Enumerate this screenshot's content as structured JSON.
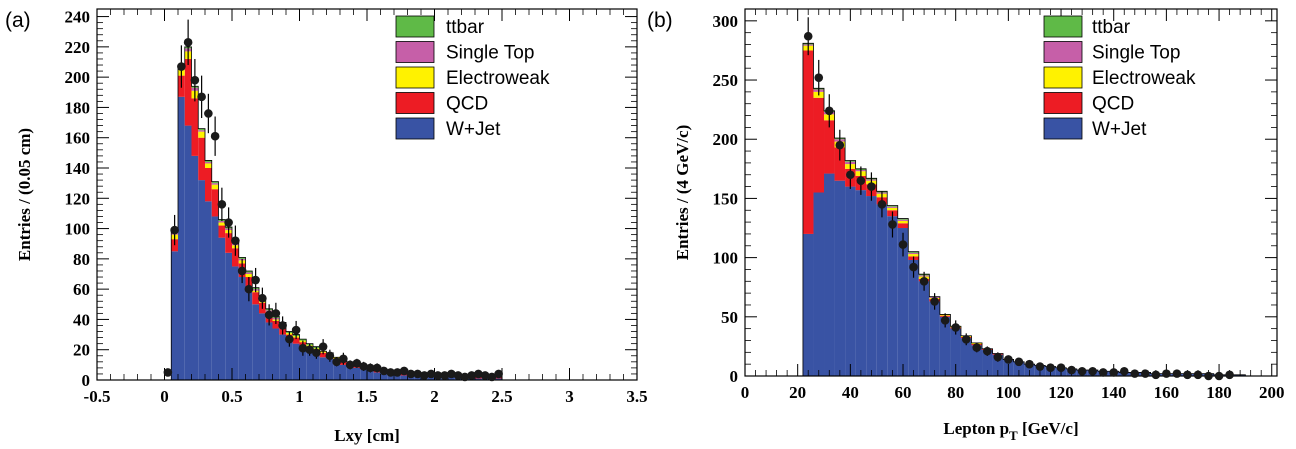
{
  "chart_data": [
    {
      "type": "stacked-histogram",
      "panel_label": "(a)",
      "xlabel": "Lxy [cm]",
      "ylabel": "Entries / (0.05 cm)",
      "xlim": [
        -0.5,
        3.5
      ],
      "ylim": [
        0,
        245
      ],
      "x_ticks": [
        -0.5,
        0,
        0.5,
        1,
        1.5,
        2,
        2.5,
        3,
        3.5
      ],
      "x_tick_labels": [
        "-0.5",
        "0",
        "0.5",
        "1",
        "1.5",
        "2",
        "2.5",
        "3",
        "3.5"
      ],
      "y_ticks": [
        0,
        20,
        40,
        60,
        80,
        100,
        120,
        140,
        160,
        180,
        200,
        220,
        240
      ],
      "y_tick_labels": [
        "0",
        "20",
        "40",
        "60",
        "80",
        "100",
        "120",
        "140",
        "160",
        "180",
        "200",
        "220",
        "240"
      ],
      "legend_position": "top-right",
      "bin_width": 0.05,
      "bin_edges_start": 0.05,
      "series": [
        {
          "name": "W+Jet",
          "color": "#3953a4",
          "values": [
            85,
            187,
            168,
            148,
            132,
            118,
            108,
            94,
            84,
            75,
            68,
            58,
            50,
            44,
            38,
            34,
            30,
            26,
            24,
            21,
            19,
            17,
            15,
            14,
            12,
            10,
            9,
            8,
            7,
            6,
            5,
            5,
            4,
            4,
            3,
            3,
            3,
            3,
            2,
            2,
            2,
            2,
            2,
            1,
            1,
            1,
            1,
            1,
            1
          ]
        },
        {
          "name": "QCD",
          "color": "#ed1c24",
          "values": [
            8,
            14,
            44,
            38,
            28,
            22,
            18,
            8,
            13,
            12,
            9,
            10,
            8,
            7,
            6,
            5,
            5,
            4,
            4,
            4,
            3,
            3,
            3,
            3,
            2,
            2,
            2,
            2,
            1,
            1,
            1,
            1,
            1,
            1,
            1,
            1,
            1,
            1,
            1,
            1,
            1,
            1,
            1,
            1,
            1,
            1,
            1,
            1,
            1
          ]
        },
        {
          "name": "Electroweak",
          "color": "#fff200",
          "values": [
            3,
            4,
            5,
            5,
            4,
            3,
            3,
            2,
            2,
            2,
            2,
            2,
            1,
            1,
            1,
            1,
            1,
            1,
            1,
            1,
            1,
            1,
            1,
            1,
            1,
            1,
            1,
            1,
            0,
            0,
            0,
            0,
            0,
            0,
            0,
            0,
            0,
            0,
            0,
            0,
            0,
            0,
            0,
            0,
            0,
            0,
            0,
            0,
            0
          ]
        },
        {
          "name": "Single Top",
          "color": "#c65fa8",
          "values": [
            1,
            2,
            2,
            2,
            1,
            1,
            1,
            1,
            1,
            1,
            1,
            1,
            1,
            1,
            1,
            1,
            1,
            0,
            0,
            0,
            0,
            0,
            0,
            0,
            0,
            0,
            0,
            0,
            0,
            0,
            0,
            0,
            0,
            0,
            0,
            0,
            0,
            0,
            0,
            0,
            0,
            0,
            0,
            0,
            0,
            0,
            0,
            0,
            0
          ]
        },
        {
          "name": "ttbar",
          "color": "#5fba47",
          "values": [
            1,
            1,
            1,
            1,
            1,
            1,
            1,
            1,
            1,
            1,
            1,
            1,
            1,
            1,
            1,
            1,
            1,
            1,
            1,
            1,
            1,
            1,
            0,
            0,
            0,
            0,
            0,
            0,
            0,
            0,
            0,
            0,
            0,
            0,
            0,
            0,
            0,
            0,
            0,
            0,
            0,
            0,
            0,
            0,
            0,
            0,
            0,
            0,
            0
          ]
        }
      ],
      "data_points": {
        "x": [
          0.025,
          0.075,
          0.125,
          0.175,
          0.225,
          0.275,
          0.325,
          0.375,
          0.425,
          0.475,
          0.525,
          0.575,
          0.625,
          0.675,
          0.725,
          0.775,
          0.825,
          0.875,
          0.925,
          0.975,
          1.025,
          1.075,
          1.125,
          1.175,
          1.225,
          1.275,
          1.325,
          1.375,
          1.425,
          1.475,
          1.525,
          1.575,
          1.625,
          1.675,
          1.725,
          1.775,
          1.825,
          1.875,
          1.925,
          1.975,
          2.025,
          2.075,
          2.125,
          2.175,
          2.225,
          2.275,
          2.325,
          2.375,
          2.425,
          2.475
        ],
        "y": [
          5,
          99,
          207,
          223,
          198,
          187,
          176,
          161,
          116,
          104,
          92,
          72,
          60,
          66,
          54,
          43,
          44,
          36,
          27,
          33,
          21,
          20,
          18,
          22,
          16,
          12,
          14,
          10,
          11,
          9,
          8,
          8,
          6,
          5,
          5,
          6,
          4,
          4,
          3,
          4,
          3,
          3,
          4,
          3,
          2,
          3,
          4,
          3,
          2,
          4
        ],
        "err": [
          2,
          10,
          14,
          15,
          14,
          14,
          13,
          13,
          11,
          10,
          10,
          8,
          8,
          8,
          7,
          7,
          7,
          6,
          5,
          6,
          5,
          4,
          4,
          5,
          4,
          3,
          4,
          3,
          3,
          3,
          3,
          3,
          2,
          2,
          2,
          2,
          2,
          2,
          2,
          2,
          2,
          2,
          2,
          2,
          1,
          2,
          2,
          2,
          1,
          2
        ]
      }
    },
    {
      "type": "stacked-histogram",
      "panel_label": "(b)",
      "xlabel": "Lepton p",
      "xlabel_sub": "T",
      "xlabel_unit": " [GeV/c]",
      "ylabel": "Entries / (4 GeV/c)",
      "xlim": [
        0,
        202
      ],
      "ylim": [
        0,
        310
      ],
      "x_ticks": [
        0,
        20,
        40,
        60,
        80,
        100,
        120,
        140,
        160,
        180,
        200
      ],
      "x_tick_labels": [
        "0",
        "20",
        "40",
        "60",
        "80",
        "100",
        "120",
        "140",
        "160",
        "180",
        "200"
      ],
      "y_ticks": [
        0,
        50,
        100,
        150,
        200,
        250,
        300
      ],
      "y_tick_labels": [
        "0",
        "50",
        "100",
        "150",
        "200",
        "250",
        "300"
      ],
      "legend_position": "top-right",
      "bin_width": 4,
      "bin_edges_start": 22,
      "series": [
        {
          "name": "W+Jet",
          "color": "#3953a4",
          "values": [
            120,
            155,
            171,
            165,
            160,
            157,
            152,
            145,
            135,
            125,
            98,
            80,
            63,
            50,
            40,
            32,
            26,
            22,
            18,
            14,
            12,
            10,
            9,
            8,
            7,
            6,
            5,
            5,
            4,
            4,
            3,
            3,
            3,
            2,
            2,
            2,
            2,
            2,
            2,
            1,
            1,
            1
          ]
        },
        {
          "name": "QCD",
          "color": "#ed1c24",
          "values": [
            155,
            80,
            45,
            28,
            15,
            12,
            10,
            6,
            5,
            4,
            3,
            2,
            2,
            1,
            1,
            1,
            1,
            1,
            1,
            0,
            0,
            0,
            0,
            0,
            0,
            0,
            0,
            0,
            0,
            0,
            0,
            0,
            0,
            0,
            0,
            0,
            0,
            0,
            0,
            0,
            0,
            0
          ]
        },
        {
          "name": "Electroweak",
          "color": "#fff200",
          "values": [
            4,
            5,
            5,
            5,
            4,
            4,
            3,
            3,
            2,
            2,
            2,
            2,
            1,
            1,
            1,
            1,
            1,
            0,
            0,
            0,
            0,
            0,
            0,
            0,
            0,
            0,
            0,
            0,
            0,
            0,
            0,
            0,
            0,
            0,
            0,
            0,
            0,
            0,
            0,
            0,
            0,
            0
          ]
        },
        {
          "name": "Single Top",
          "color": "#c65fa8",
          "values": [
            1,
            2,
            2,
            2,
            2,
            1,
            1,
            1,
            1,
            1,
            1,
            1,
            1,
            0,
            0,
            0,
            0,
            0,
            0,
            0,
            0,
            0,
            0,
            0,
            0,
            0,
            0,
            0,
            0,
            0,
            0,
            0,
            0,
            0,
            0,
            0,
            0,
            0,
            0,
            0,
            0,
            0
          ]
        },
        {
          "name": "ttbar",
          "color": "#5fba47",
          "values": [
            1,
            1,
            1,
            1,
            1,
            1,
            1,
            1,
            1,
            1,
            1,
            1,
            0,
            0,
            0,
            0,
            0,
            0,
            0,
            0,
            0,
            0,
            0,
            0,
            0,
            0,
            0,
            0,
            0,
            0,
            0,
            0,
            0,
            0,
            0,
            0,
            0,
            0,
            0,
            0,
            0,
            0
          ]
        }
      ],
      "data_points": {
        "x": [
          24,
          28,
          32,
          36,
          40,
          44,
          48,
          52,
          56,
          60,
          64,
          68,
          72,
          76,
          80,
          84,
          88,
          92,
          96,
          100,
          104,
          108,
          112,
          116,
          120,
          124,
          128,
          132,
          136,
          140,
          144,
          148,
          152,
          156,
          160,
          164,
          168,
          172,
          176,
          180,
          184
        ],
        "y": [
          287,
          252,
          224,
          195,
          170,
          165,
          160,
          145,
          128,
          111,
          92,
          80,
          63,
          47,
          41,
          31,
          24,
          21,
          16,
          14,
          12,
          10,
          8,
          7,
          7,
          5,
          4,
          4,
          3,
          3,
          4,
          2,
          2,
          1,
          2,
          2,
          1,
          1,
          0,
          0,
          1
        ],
        "err": [
          16,
          15,
          14,
          13,
          12,
          12,
          12,
          11,
          11,
          10,
          9,
          8,
          7,
          6,
          6,
          5,
          4,
          4,
          4,
          3,
          3,
          3,
          2,
          2,
          2,
          2,
          2,
          2,
          1,
          1,
          2,
          1,
          1,
          1,
          1,
          1,
          1,
          1,
          0,
          0,
          1
        ]
      }
    }
  ]
}
